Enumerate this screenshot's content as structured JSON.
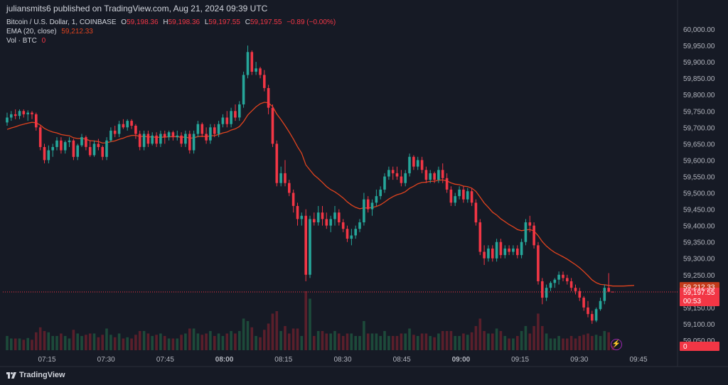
{
  "header": {
    "published_by": "juliansmits6 published on TradingView.com, Aug 21, 2024 09:39 UTC"
  },
  "legend": {
    "symbol": "Bitcoin / U.S. Dollar, 1, COINBASE",
    "o_label": "O",
    "o_value": "59,198.36",
    "h_label": "H",
    "h_value": "59,198.36",
    "l_label": "L",
    "l_value": "59,197.55",
    "c_label": "C",
    "c_value": "59,197.55",
    "change": "−0.89 (−0.00%)",
    "ema_label": "EMA (20, close)",
    "ema_value": "59,212.33",
    "vol_label": "Vol · BTC",
    "vol_value": "0"
  },
  "price_tags": {
    "ema": "59,212.33",
    "last": "59,197.55",
    "countdown": "00:53",
    "volume": "0"
  },
  "footer": {
    "brand": "TradingView",
    "flash_icon": "lightning-bolt-icon"
  },
  "colors": {
    "background": "#161a25",
    "up": "#26a69a",
    "down": "#f23645",
    "ema": "#e0431e",
    "vol_up": "#1d4a3a",
    "vol_down": "#5a1f2b",
    "text": "#d1d4dc",
    "price_line": "#f23645"
  },
  "chart_data": {
    "type": "candlestick",
    "interval": "1 minute",
    "x_axis_labels": [
      "07:15",
      "07:30",
      "07:45",
      "08:00",
      "08:15",
      "08:30",
      "08:45",
      "09:00",
      "09:15",
      "09:30",
      "09:45"
    ],
    "x_axis_bold": [
      "08:00",
      "09:00"
    ],
    "y_axis_labels": [
      "60,000.00",
      "59,950.00",
      "59,900.00",
      "59,850.00",
      "59,800.00",
      "59,750.00",
      "59,700.00",
      "59,650.00",
      "59,600.00",
      "59,550.00",
      "59,500.00",
      "59,450.00",
      "59,400.00",
      "59,350.00",
      "59,300.00",
      "59,250.00",
      "59,150.00",
      "59,100.00",
      "59,050.00"
    ],
    "ylim": [
      59050,
      60000
    ],
    "last_price": 59197.55,
    "ema_period": 20,
    "ohlc": [
      [
        59715,
        59745,
        59705,
        59730
      ],
      [
        59730,
        59750,
        59720,
        59740
      ],
      [
        59740,
        59755,
        59725,
        59735
      ],
      [
        59735,
        59755,
        59725,
        59750
      ],
      [
        59750,
        59755,
        59730,
        59740
      ],
      [
        59740,
        59752,
        59720,
        59745
      ],
      [
        59745,
        59750,
        59725,
        59740
      ],
      [
        59740,
        59745,
        59690,
        59700
      ],
      [
        59700,
        59705,
        59630,
        59640
      ],
      [
        59640,
        59650,
        59590,
        59600
      ],
      [
        59600,
        59645,
        59590,
        59630
      ],
      [
        59630,
        59650,
        59610,
        59640
      ],
      [
        59640,
        59670,
        59630,
        59660
      ],
      [
        59660,
        59670,
        59620,
        59630
      ],
      [
        59630,
        59660,
        59620,
        59655
      ],
      [
        59655,
        59670,
        59640,
        59660
      ],
      [
        59660,
        59665,
        59600,
        59610
      ],
      [
        59610,
        59650,
        59600,
        59645
      ],
      [
        59645,
        59680,
        59640,
        59670
      ],
      [
        59670,
        59675,
        59630,
        59640
      ],
      [
        59640,
        59660,
        59610,
        59615
      ],
      [
        59615,
        59660,
        59610,
        59650
      ],
      [
        59650,
        59665,
        59630,
        59640
      ],
      [
        59640,
        59645,
        59600,
        59610
      ],
      [
        59610,
        59670,
        59600,
        59660
      ],
      [
        59660,
        59700,
        59655,
        59690
      ],
      [
        59690,
        59705,
        59670,
        59680
      ],
      [
        59680,
        59720,
        59670,
        59710
      ],
      [
        59710,
        59725,
        59695,
        59700
      ],
      [
        59700,
        59725,
        59690,
        59720
      ],
      [
        59720,
        59725,
        59695,
        59705
      ],
      [
        59705,
        59710,
        59665,
        59680
      ],
      [
        59680,
        59690,
        59630,
        59640
      ],
      [
        59640,
        59690,
        59630,
        59680
      ],
      [
        59680,
        59690,
        59640,
        59650
      ],
      [
        59650,
        59685,
        59645,
        59675
      ],
      [
        59675,
        59685,
        59640,
        59650
      ],
      [
        59650,
        59690,
        59640,
        59680
      ],
      [
        59680,
        59690,
        59650,
        59670
      ],
      [
        59670,
        59690,
        59660,
        59685
      ],
      [
        59685,
        59690,
        59660,
        59670
      ],
      [
        59670,
        59690,
        59660,
        59675
      ],
      [
        59675,
        59685,
        59640,
        59650
      ],
      [
        59650,
        59690,
        59640,
        59680
      ],
      [
        59680,
        59690,
        59620,
        59630
      ],
      [
        59630,
        59690,
        59620,
        59680
      ],
      [
        59680,
        59720,
        59670,
        59710
      ],
      [
        59710,
        59715,
        59670,
        59680
      ],
      [
        59680,
        59700,
        59650,
        59660
      ],
      [
        59660,
        59710,
        59650,
        59700
      ],
      [
        59700,
        59710,
        59670,
        59680
      ],
      [
        59680,
        59720,
        59670,
        59710
      ],
      [
        59710,
        59740,
        59700,
        59730
      ],
      [
        59730,
        59750,
        59700,
        59710
      ],
      [
        59710,
        59760,
        59700,
        59750
      ],
      [
        59750,
        59770,
        59720,
        59730
      ],
      [
        59730,
        59780,
        59720,
        59770
      ],
      [
        59770,
        59870,
        59760,
        59860
      ],
      [
        59860,
        59950,
        59850,
        59930
      ],
      [
        59930,
        59935,
        59860,
        59870
      ],
      [
        59870,
        59900,
        59860,
        59880
      ],
      [
        59880,
        59885,
        59850,
        59860
      ],
      [
        59860,
        59875,
        59810,
        59820
      ],
      [
        59820,
        59830,
        59740,
        59760
      ],
      [
        59760,
        59770,
        59640,
        59650
      ],
      [
        59650,
        59660,
        59520,
        59530
      ],
      [
        59530,
        59580,
        59520,
        59560
      ],
      [
        59560,
        59600,
        59520,
        59530
      ],
      [
        59530,
        59540,
        59490,
        59500
      ],
      [
        59500,
        59510,
        59440,
        59460
      ],
      [
        59460,
        59470,
        59400,
        59420
      ],
      [
        59420,
        59440,
        59400,
        59430
      ],
      [
        59430,
        59450,
        59230,
        59250
      ],
      [
        59250,
        59430,
        59240,
        59420
      ],
      [
        59420,
        59440,
        59400,
        59410
      ],
      [
        59410,
        59460,
        59400,
        59440
      ],
      [
        59440,
        59460,
        59400,
        59420
      ],
      [
        59420,
        59440,
        59390,
        59400
      ],
      [
        59400,
        59430,
        59380,
        59420
      ],
      [
        59420,
        59460,
        59400,
        59440
      ],
      [
        59440,
        59450,
        59400,
        59410
      ],
      [
        59410,
        59420,
        59380,
        59390
      ],
      [
        59390,
        59400,
        59350,
        59360
      ],
      [
        59360,
        59390,
        59340,
        59370
      ],
      [
        59370,
        59400,
        59360,
        59390
      ],
      [
        59390,
        59420,
        59380,
        59410
      ],
      [
        59410,
        59500,
        59400,
        59480
      ],
      [
        59480,
        59490,
        59440,
        59450
      ],
      [
        59450,
        59480,
        59430,
        59470
      ],
      [
        59470,
        59510,
        59460,
        59490
      ],
      [
        59490,
        59520,
        59480,
        59510
      ],
      [
        59510,
        59560,
        59500,
        59550
      ],
      [
        59550,
        59580,
        59540,
        59570
      ],
      [
        59570,
        59580,
        59540,
        59560
      ],
      [
        59560,
        59580,
        59540,
        59550
      ],
      [
        59550,
        59570,
        59520,
        59530
      ],
      [
        59530,
        59570,
        59520,
        59560
      ],
      [
        59560,
        59620,
        59550,
        59610
      ],
      [
        59610,
        59615,
        59570,
        59580
      ],
      [
        59580,
        59610,
        59570,
        59600
      ],
      [
        59600,
        59610,
        59560,
        59570
      ],
      [
        59570,
        59580,
        59530,
        59540
      ],
      [
        59540,
        59570,
        59530,
        59560
      ],
      [
        59560,
        59565,
        59530,
        59540
      ],
      [
        59540,
        59580,
        59530,
        59570
      ],
      [
        59570,
        59590,
        59530,
        59545
      ],
      [
        59545,
        59560,
        59500,
        59510
      ],
      [
        59510,
        59520,
        59460,
        59470
      ],
      [
        59470,
        59500,
        59460,
        59490
      ],
      [
        59490,
        59520,
        59480,
        59510
      ],
      [
        59510,
        59520,
        59470,
        59480
      ],
      [
        59480,
        59515,
        59470,
        59505
      ],
      [
        59505,
        59515,
        59460,
        59470
      ],
      [
        59470,
        59480,
        59400,
        59410
      ],
      [
        59410,
        59420,
        59310,
        59320
      ],
      [
        59320,
        59340,
        59280,
        59300
      ],
      [
        59300,
        59340,
        59290,
        59330
      ],
      [
        59330,
        59340,
        59290,
        59300
      ],
      [
        59300,
        59360,
        59290,
        59350
      ],
      [
        59350,
        59360,
        59300,
        59310
      ],
      [
        59310,
        59340,
        59300,
        59330
      ],
      [
        59330,
        59340,
        59310,
        59320
      ],
      [
        59320,
        59340,
        59310,
        59330
      ],
      [
        59330,
        59340,
        59300,
        59310
      ],
      [
        59310,
        59360,
        59300,
        59350
      ],
      [
        59350,
        59420,
        59340,
        59410
      ],
      [
        59410,
        59430,
        59380,
        59400
      ],
      [
        59400,
        59410,
        59330,
        59340
      ],
      [
        59340,
        59350,
        59220,
        59230
      ],
      [
        59230,
        59240,
        59160,
        59180
      ],
      [
        59180,
        59220,
        59170,
        59210
      ],
      [
        59210,
        59230,
        59200,
        59225
      ],
      [
        59225,
        59240,
        59210,
        59235
      ],
      [
        59235,
        59260,
        59220,
        59250
      ],
      [
        59250,
        59260,
        59230,
        59240
      ],
      [
        59240,
        59250,
        59220,
        59230
      ],
      [
        59230,
        59240,
        59200,
        59210
      ],
      [
        59210,
        59220,
        59190,
        59200
      ],
      [
        59200,
        59210,
        59170,
        59180
      ],
      [
        59180,
        59185,
        59140,
        59150
      ],
      [
        59150,
        59170,
        59120,
        59130
      ],
      [
        59130,
        59140,
        59100,
        59110
      ],
      [
        59110,
        59150,
        59105,
        59145
      ],
      [
        59145,
        59180,
        59140,
        59170
      ],
      [
        59170,
        59220,
        59160,
        59210
      ],
      [
        59210,
        59255,
        59200,
        59198.36
      ],
      [
        59198.36,
        59198.36,
        59197.55,
        59197.55
      ]
    ]
  }
}
